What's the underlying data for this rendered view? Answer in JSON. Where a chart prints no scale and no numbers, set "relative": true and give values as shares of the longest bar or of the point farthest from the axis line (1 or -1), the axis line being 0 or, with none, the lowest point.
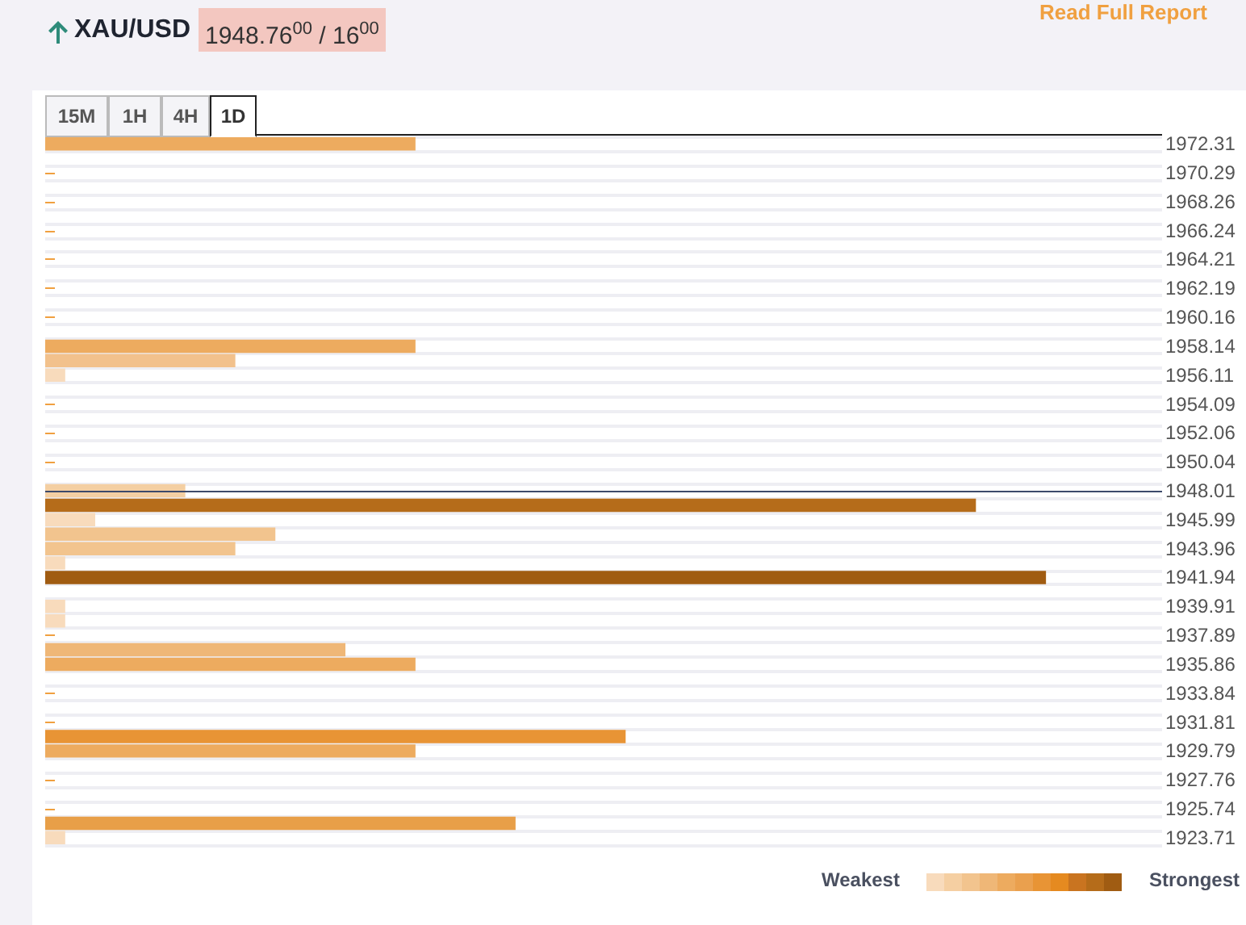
{
  "chart_data": {
    "type": "bar",
    "orientation": "horizontal",
    "relative": true,
    "grid": "y",
    "categories": [
      "1972.31",
      null,
      "1970.29",
      null,
      "1968.26",
      null,
      "1966.24",
      null,
      "1964.21",
      null,
      "1962.19",
      null,
      "1960.16",
      null,
      "1958.14",
      null,
      "1956.11",
      null,
      "1954.09",
      null,
      "1952.06",
      null,
      "1950.04",
      null,
      "1948.01",
      null,
      "1945.99",
      null,
      "1943.96",
      null,
      "1941.94",
      null,
      "1939.91",
      null,
      "1937.89",
      null,
      "1935.86",
      null,
      "1933.84",
      null,
      "1931.81",
      null,
      "1929.79",
      null,
      "1927.76",
      null,
      "1925.74",
      null,
      "1923.71"
    ],
    "values": [
      0.37,
      null,
      null,
      null,
      null,
      null,
      null,
      null,
      null,
      null,
      null,
      null,
      null,
      null,
      0.37,
      0.19,
      0.02,
      null,
      null,
      null,
      null,
      null,
      null,
      null,
      0.14,
      0.93,
      0.05,
      0.23,
      0.19,
      0.02,
      1,
      null,
      0.02,
      0.02,
      null,
      0.3,
      0.37,
      null,
      null,
      null,
      null,
      0.58,
      0.37,
      null,
      null,
      null,
      null,
      0.47,
      0.02
    ],
    "colors": [
      "#edab5f",
      null,
      null,
      null,
      null,
      null,
      null,
      null,
      null,
      null,
      null,
      null,
      null,
      null,
      "#edab5f",
      "#f2c18c",
      "#f8dbbc",
      null,
      null,
      null,
      null,
      null,
      null,
      null,
      "#f4cfa2",
      "#b56c1a",
      "#f8dbbc",
      "#f2c48e",
      "#f2c48e",
      "#f8dbbc",
      "#a05c12",
      null,
      "#f8dbbc",
      "#f8dbbc",
      null,
      "#efb777",
      "#edab5f",
      null,
      null,
      null,
      null,
      "#e89435",
      "#edab5f",
      null,
      null,
      null,
      null,
      "#e89f48",
      "#f8dbbc"
    ],
    "ref_lines": [
      {
        "axis": "y",
        "value": "1948.01",
        "color": "#3d4a6b"
      }
    ],
    "annotations": [
      "Read Full Report",
      "XAU/USD",
      "1948.76$^{00}$ / 16$^{00}$",
      "15M",
      "1H",
      "4H",
      "1D",
      "Weakest",
      "Strongest"
    ]
  }
}
